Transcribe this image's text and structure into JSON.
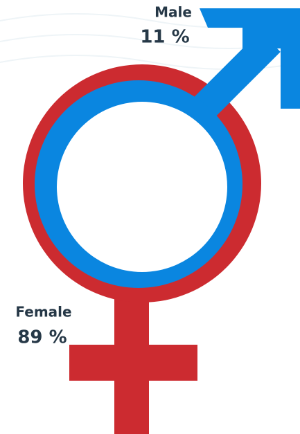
{
  "chart_data": {
    "type": "pictogram",
    "categories": [
      "Male",
      "Female"
    ],
    "values": [
      11,
      89
    ],
    "value_labels": [
      "11 %",
      "89 %"
    ],
    "colors": [
      "#0a86e0",
      "#cc2b30"
    ]
  }
}
